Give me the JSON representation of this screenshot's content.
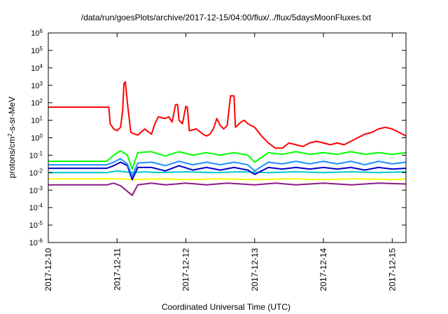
{
  "chart_data": {
    "type": "line",
    "title": "/data/run/goesPlots/archive/2017-12-15/04:00/flux/../flux/5daysMoonFluxes.txt",
    "xlabel": "Coordinated Universal Time (UTC)",
    "ylabel": {
      "pre": "protons/cm",
      "sup": "2",
      "post": "-s-sr-MeV"
    },
    "yscale": "log",
    "ylim_exp": [
      -6,
      6
    ],
    "ytick_base": "10",
    "y_ticks_exp": [
      -6,
      -5,
      -4,
      -3,
      -2,
      -1,
      0,
      1,
      2,
      3,
      4,
      5,
      6
    ],
    "xlim_days": [
      0,
      5.2
    ],
    "x_ticks": [
      {
        "day": 0,
        "label": "2017-12-10"
      },
      {
        "day": 1,
        "label": "2017-12-11"
      },
      {
        "day": 2,
        "label": "2017-12-12"
      },
      {
        "day": 3,
        "label": "2017-12-13"
      },
      {
        "day": 4,
        "label": "2017-12-14"
      },
      {
        "day": 5,
        "label": "2017-12-15"
      }
    ],
    "grid": false,
    "legend": false,
    "series": [
      {
        "color": "#8b1a89",
        "points": [
          [
            0,
            -2.7
          ],
          [
            0.85,
            -2.7
          ],
          [
            0.95,
            -2.6
          ],
          [
            1.05,
            -2.75
          ],
          [
            1.22,
            -3.3
          ],
          [
            1.3,
            -2.7
          ],
          [
            1.5,
            -2.6
          ],
          [
            1.7,
            -2.7
          ],
          [
            2.0,
            -2.6
          ],
          [
            2.3,
            -2.7
          ],
          [
            2.6,
            -2.6
          ],
          [
            3.0,
            -2.7
          ],
          [
            3.3,
            -2.6
          ],
          [
            3.6,
            -2.7
          ],
          [
            4.0,
            -2.6
          ],
          [
            4.4,
            -2.7
          ],
          [
            4.8,
            -2.6
          ],
          [
            5.2,
            -2.65
          ]
        ]
      },
      {
        "color": "#ffff00",
        "points": [
          [
            0,
            -2.35
          ],
          [
            0.85,
            -2.35
          ],
          [
            1.0,
            -2.35
          ],
          [
            1.25,
            -2.4
          ],
          [
            1.6,
            -2.35
          ],
          [
            2.0,
            -2.4
          ],
          [
            2.5,
            -2.35
          ],
          [
            3.0,
            -2.4
          ],
          [
            3.5,
            -2.35
          ],
          [
            4.0,
            -2.4
          ],
          [
            4.5,
            -2.35
          ],
          [
            5.0,
            -2.4
          ],
          [
            5.2,
            -2.35
          ]
        ]
      },
      {
        "color": "#00c8c8",
        "points": [
          [
            0,
            -2.0
          ],
          [
            0.85,
            -2.0
          ],
          [
            1.0,
            -1.9
          ],
          [
            1.2,
            -2.0
          ],
          [
            1.4,
            -1.95
          ],
          [
            1.6,
            -2.0
          ],
          [
            2.0,
            -1.95
          ],
          [
            2.4,
            -2.0
          ],
          [
            2.8,
            -1.95
          ],
          [
            3.2,
            -2.0
          ],
          [
            3.6,
            -1.95
          ],
          [
            4.0,
            -2.0
          ],
          [
            4.4,
            -1.95
          ],
          [
            4.8,
            -2.0
          ],
          [
            5.2,
            -1.95
          ]
        ]
      },
      {
        "color": "#0000c8",
        "points": [
          [
            0,
            -1.75
          ],
          [
            0.85,
            -1.75
          ],
          [
            0.95,
            -1.6
          ],
          [
            1.05,
            -1.4
          ],
          [
            1.15,
            -1.6
          ],
          [
            1.22,
            -2.4
          ],
          [
            1.3,
            -1.7
          ],
          [
            1.5,
            -1.7
          ],
          [
            1.7,
            -1.9
          ],
          [
            1.9,
            -1.6
          ],
          [
            2.1,
            -1.85
          ],
          [
            2.3,
            -1.7
          ],
          [
            2.5,
            -1.85
          ],
          [
            2.7,
            -1.7
          ],
          [
            2.9,
            -1.85
          ],
          [
            3.0,
            -2.1
          ],
          [
            3.2,
            -1.7
          ],
          [
            3.4,
            -1.8
          ],
          [
            3.6,
            -1.7
          ],
          [
            3.8,
            -1.8
          ],
          [
            4.0,
            -1.7
          ],
          [
            4.2,
            -1.8
          ],
          [
            4.4,
            -1.7
          ],
          [
            4.6,
            -1.85
          ],
          [
            4.8,
            -1.7
          ],
          [
            5.0,
            -1.8
          ],
          [
            5.2,
            -1.75
          ]
        ]
      },
      {
        "color": "#1e90ff",
        "points": [
          [
            0,
            -1.55
          ],
          [
            0.85,
            -1.55
          ],
          [
            0.95,
            -1.4
          ],
          [
            1.05,
            -1.2
          ],
          [
            1.15,
            -1.5
          ],
          [
            1.22,
            -2.2
          ],
          [
            1.3,
            -1.45
          ],
          [
            1.5,
            -1.4
          ],
          [
            1.7,
            -1.6
          ],
          [
            1.9,
            -1.35
          ],
          [
            2.1,
            -1.55
          ],
          [
            2.3,
            -1.4
          ],
          [
            2.5,
            -1.55
          ],
          [
            2.7,
            -1.4
          ],
          [
            2.9,
            -1.55
          ],
          [
            3.0,
            -1.9
          ],
          [
            3.2,
            -1.4
          ],
          [
            3.4,
            -1.5
          ],
          [
            3.6,
            -1.35
          ],
          [
            3.8,
            -1.5
          ],
          [
            4.0,
            -1.35
          ],
          [
            4.2,
            -1.5
          ],
          [
            4.4,
            -1.35
          ],
          [
            4.6,
            -1.55
          ],
          [
            4.8,
            -1.35
          ],
          [
            5.0,
            -1.5
          ],
          [
            5.2,
            -1.4
          ]
        ]
      },
      {
        "color": "#00ff00",
        "points": [
          [
            0,
            -1.35
          ],
          [
            0.85,
            -1.35
          ],
          [
            0.95,
            -1.0
          ],
          [
            1.05,
            -0.75
          ],
          [
            1.15,
            -1.0
          ],
          [
            1.22,
            -1.8
          ],
          [
            1.3,
            -0.85
          ],
          [
            1.5,
            -0.8
          ],
          [
            1.7,
            -1.05
          ],
          [
            1.9,
            -0.8
          ],
          [
            2.1,
            -1.0
          ],
          [
            2.3,
            -0.85
          ],
          [
            2.5,
            -1.0
          ],
          [
            2.7,
            -0.85
          ],
          [
            2.9,
            -1.0
          ],
          [
            3.0,
            -1.4
          ],
          [
            3.2,
            -0.85
          ],
          [
            3.4,
            -0.95
          ],
          [
            3.6,
            -0.8
          ],
          [
            3.8,
            -0.95
          ],
          [
            4.0,
            -0.85
          ],
          [
            4.2,
            -0.95
          ],
          [
            4.4,
            -0.8
          ],
          [
            4.6,
            -0.95
          ],
          [
            4.8,
            -0.85
          ],
          [
            5.0,
            -0.95
          ],
          [
            5.2,
            -0.85
          ]
        ]
      },
      {
        "color": "#ff0000",
        "points": [
          [
            0,
            1.75
          ],
          [
            0.88,
            1.75
          ],
          [
            0.9,
            0.8
          ],
          [
            0.95,
            0.5
          ],
          [
            1.0,
            0.4
          ],
          [
            1.05,
            0.6
          ],
          [
            1.08,
            1.5
          ],
          [
            1.1,
            3.1
          ],
          [
            1.12,
            3.2
          ],
          [
            1.15,
            2.0
          ],
          [
            1.2,
            0.3
          ],
          [
            1.3,
            0.15
          ],
          [
            1.4,
            0.5
          ],
          [
            1.5,
            0.2
          ],
          [
            1.55,
            0.8
          ],
          [
            1.6,
            1.2
          ],
          [
            1.7,
            1.1
          ],
          [
            1.75,
            1.2
          ],
          [
            1.8,
            0.9
          ],
          [
            1.85,
            1.9
          ],
          [
            1.88,
            1.9
          ],
          [
            1.9,
            1.0
          ],
          [
            1.95,
            0.8
          ],
          [
            2.0,
            1.8
          ],
          [
            2.02,
            1.75
          ],
          [
            2.05,
            0.4
          ],
          [
            2.15,
            0.5
          ],
          [
            2.25,
            0.2
          ],
          [
            2.3,
            0.1
          ],
          [
            2.35,
            0.2
          ],
          [
            2.4,
            0.5
          ],
          [
            2.45,
            1.1
          ],
          [
            2.5,
            0.7
          ],
          [
            2.55,
            0.5
          ],
          [
            2.6,
            0.7
          ],
          [
            2.65,
            2.4
          ],
          [
            2.7,
            2.4
          ],
          [
            2.72,
            0.6
          ],
          [
            2.8,
            0.9
          ],
          [
            2.85,
            1.0
          ],
          [
            2.9,
            0.8
          ],
          [
            3.0,
            0.6
          ],
          [
            3.1,
            0.1
          ],
          [
            3.2,
            -0.3
          ],
          [
            3.3,
            -0.6
          ],
          [
            3.4,
            -0.6
          ],
          [
            3.5,
            -0.3
          ],
          [
            3.6,
            -0.4
          ],
          [
            3.7,
            -0.5
          ],
          [
            3.8,
            -0.3
          ],
          [
            3.9,
            -0.2
          ],
          [
            4.0,
            -0.3
          ],
          [
            4.1,
            -0.4
          ],
          [
            4.2,
            -0.3
          ],
          [
            4.3,
            -0.4
          ],
          [
            4.4,
            -0.2
          ],
          [
            4.5,
            0.0
          ],
          [
            4.6,
            0.2
          ],
          [
            4.7,
            0.3
          ],
          [
            4.8,
            0.5
          ],
          [
            4.9,
            0.6
          ],
          [
            5.0,
            0.5
          ],
          [
            5.1,
            0.3
          ],
          [
            5.15,
            0.2
          ],
          [
            5.2,
            0.1
          ]
        ]
      }
    ]
  }
}
